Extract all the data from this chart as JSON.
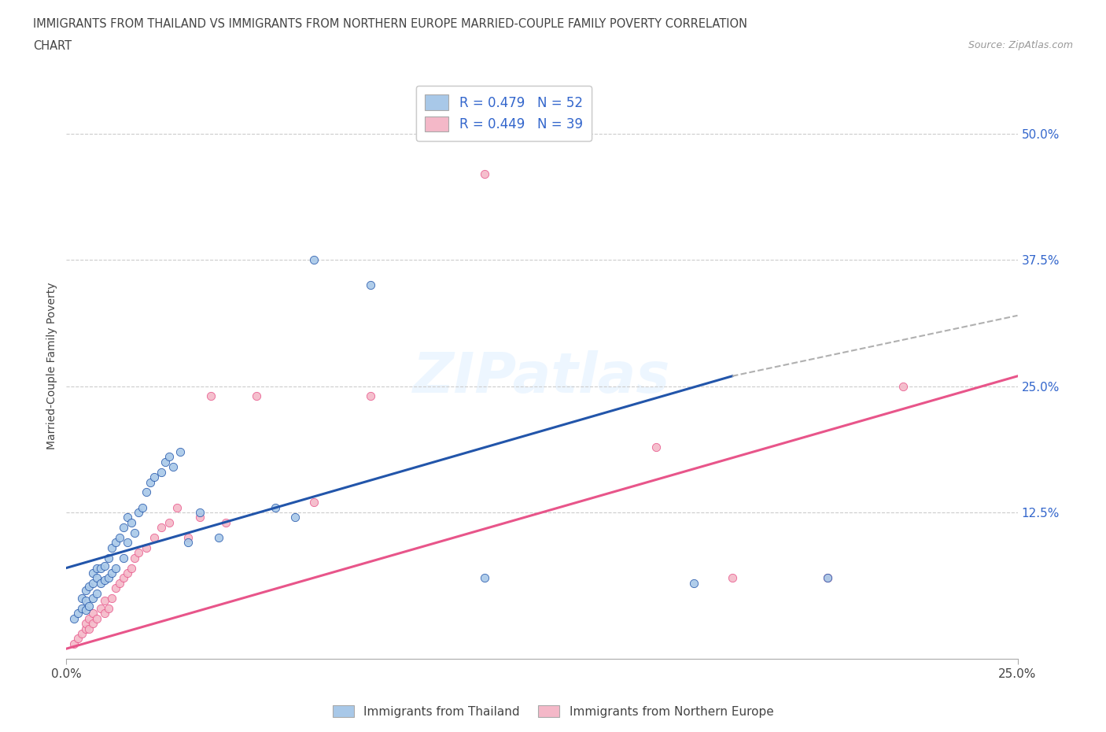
{
  "title_line1": "IMMIGRANTS FROM THAILAND VS IMMIGRANTS FROM NORTHERN EUROPE MARRIED-COUPLE FAMILY POVERTY CORRELATION",
  "title_line2": "CHART",
  "source": "Source: ZipAtlas.com",
  "ylabel": "Married-Couple Family Poverty",
  "ytick_labels": [
    "12.5%",
    "25.0%",
    "37.5%",
    "50.0%"
  ],
  "ytick_values": [
    0.125,
    0.25,
    0.375,
    0.5
  ],
  "xlim": [
    0.0,
    0.25
  ],
  "ylim": [
    -0.02,
    0.56
  ],
  "legend_label1": "R = 0.479   N = 52",
  "legend_label2": "R = 0.449   N = 39",
  "legend_bottom_label1": "Immigrants from Thailand",
  "legend_bottom_label2": "Immigrants from Northern Europe",
  "color_blue": "#a8c8e8",
  "color_pink": "#f4b8c8",
  "line_blue": "#2255aa",
  "line_pink": "#e8558a",
  "color_dash": "#b0b0b0",
  "watermark": "ZIPatlas",
  "blue_scatter_x": [
    0.002,
    0.003,
    0.004,
    0.004,
    0.005,
    0.005,
    0.005,
    0.006,
    0.006,
    0.007,
    0.007,
    0.007,
    0.008,
    0.008,
    0.008,
    0.009,
    0.009,
    0.01,
    0.01,
    0.011,
    0.011,
    0.012,
    0.012,
    0.013,
    0.013,
    0.014,
    0.015,
    0.015,
    0.016,
    0.016,
    0.017,
    0.018,
    0.019,
    0.02,
    0.021,
    0.022,
    0.023,
    0.025,
    0.026,
    0.027,
    0.028,
    0.03,
    0.032,
    0.035,
    0.04,
    0.055,
    0.06,
    0.065,
    0.08,
    0.11,
    0.165,
    0.2
  ],
  "blue_scatter_y": [
    0.02,
    0.025,
    0.03,
    0.04,
    0.028,
    0.038,
    0.048,
    0.032,
    0.052,
    0.04,
    0.055,
    0.065,
    0.045,
    0.06,
    0.07,
    0.055,
    0.07,
    0.058,
    0.072,
    0.06,
    0.08,
    0.065,
    0.09,
    0.07,
    0.095,
    0.1,
    0.08,
    0.11,
    0.095,
    0.12,
    0.115,
    0.105,
    0.125,
    0.13,
    0.145,
    0.155,
    0.16,
    0.165,
    0.175,
    0.18,
    0.17,
    0.185,
    0.095,
    0.125,
    0.1,
    0.13,
    0.12,
    0.375,
    0.35,
    0.06,
    0.055,
    0.06
  ],
  "pink_scatter_x": [
    0.002,
    0.003,
    0.004,
    0.005,
    0.005,
    0.006,
    0.006,
    0.007,
    0.007,
    0.008,
    0.009,
    0.01,
    0.01,
    0.011,
    0.012,
    0.013,
    0.014,
    0.015,
    0.016,
    0.017,
    0.018,
    0.019,
    0.021,
    0.023,
    0.025,
    0.027,
    0.029,
    0.032,
    0.035,
    0.038,
    0.042,
    0.05,
    0.065,
    0.08,
    0.11,
    0.155,
    0.175,
    0.2,
    0.22
  ],
  "pink_scatter_y": [
    -0.005,
    0.0,
    0.005,
    0.01,
    0.015,
    0.01,
    0.02,
    0.015,
    0.025,
    0.02,
    0.03,
    0.025,
    0.038,
    0.03,
    0.04,
    0.05,
    0.055,
    0.06,
    0.065,
    0.07,
    0.08,
    0.085,
    0.09,
    0.1,
    0.11,
    0.115,
    0.13,
    0.1,
    0.12,
    0.24,
    0.115,
    0.24,
    0.135,
    0.24,
    0.46,
    0.19,
    0.06,
    0.06,
    0.25
  ],
  "blue_line_x0": 0.0,
  "blue_line_y0": 0.07,
  "blue_line_x1": 0.175,
  "blue_line_y1": 0.26,
  "dash_line_x0": 0.175,
  "dash_line_y0": 0.26,
  "dash_line_x1": 0.25,
  "dash_line_y1": 0.32,
  "pink_line_x0": 0.0,
  "pink_line_y0": -0.01,
  "pink_line_x1": 0.25,
  "pink_line_y1": 0.26
}
